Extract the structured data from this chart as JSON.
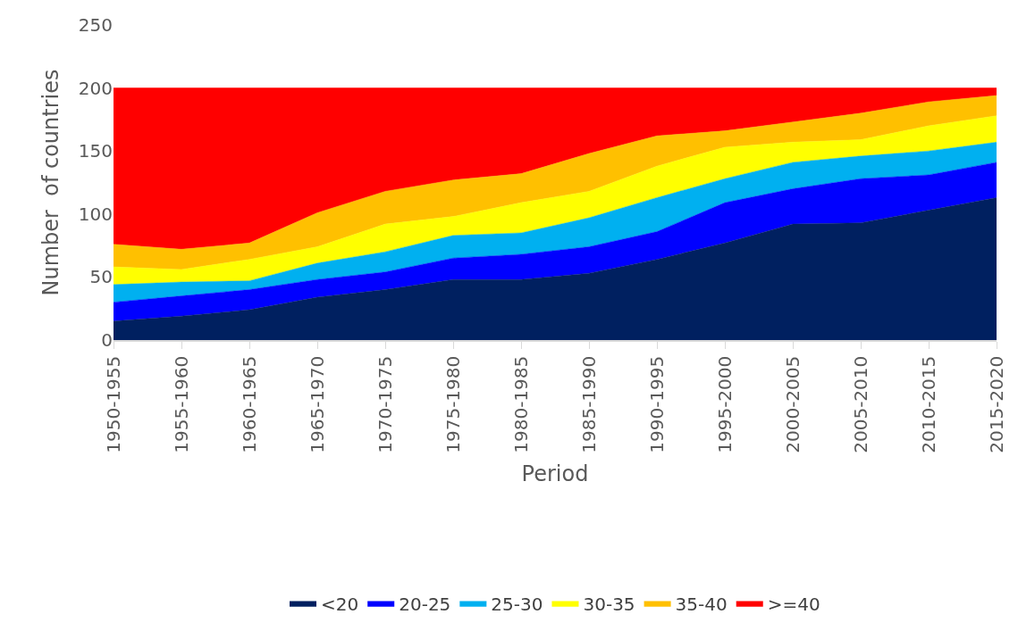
{
  "chart_data": {
    "type": "area",
    "stacked": true,
    "xlabel": "Period",
    "ylabel": "Number  of countries",
    "categories": [
      "1950-1955",
      "1955-1960",
      "1960-1965",
      "1965-1970",
      "1970-1975",
      "1975-1980",
      "1980-1985",
      "1985-1990",
      "1990-1995",
      "1995-2000",
      "2000-2005",
      "2005-2010",
      "2010-2015",
      "2015-2020"
    ],
    "series": [
      {
        "name": "<20",
        "color": "#002060",
        "values": [
          15,
          19,
          24,
          34,
          40,
          48,
          48,
          53,
          64,
          77,
          92,
          93,
          103,
          113
        ]
      },
      {
        "name": "20-25",
        "color": "#0000ff",
        "values": [
          15,
          16,
          16,
          14,
          14,
          17,
          20,
          21,
          22,
          32,
          28,
          35,
          28,
          28
        ]
      },
      {
        "name": "25-30",
        "color": "#00b0f0",
        "values": [
          14,
          11,
          7,
          13,
          16,
          18,
          17,
          23,
          27,
          19,
          21,
          18,
          19,
          16
        ]
      },
      {
        "name": "30-35",
        "color": "#ffff00",
        "values": [
          14,
          10,
          17,
          13,
          22,
          15,
          24,
          21,
          25,
          25,
          16,
          13,
          20,
          21
        ]
      },
      {
        "name": "35-40",
        "color": "#ffc000",
        "values": [
          18,
          16,
          13,
          27,
          26,
          29,
          23,
          30,
          24,
          13,
          16,
          21,
          19,
          16
        ]
      },
      {
        "name": ">=40",
        "color": "#ff0000",
        "values": [
          124,
          128,
          123,
          99,
          82,
          73,
          68,
          52,
          38,
          34,
          27,
          20,
          11,
          6
        ]
      }
    ],
    "ylim": [
      0,
      250
    ],
    "yticks": [
      0,
      50,
      100,
      150,
      200,
      250
    ],
    "legend": "bottom"
  }
}
